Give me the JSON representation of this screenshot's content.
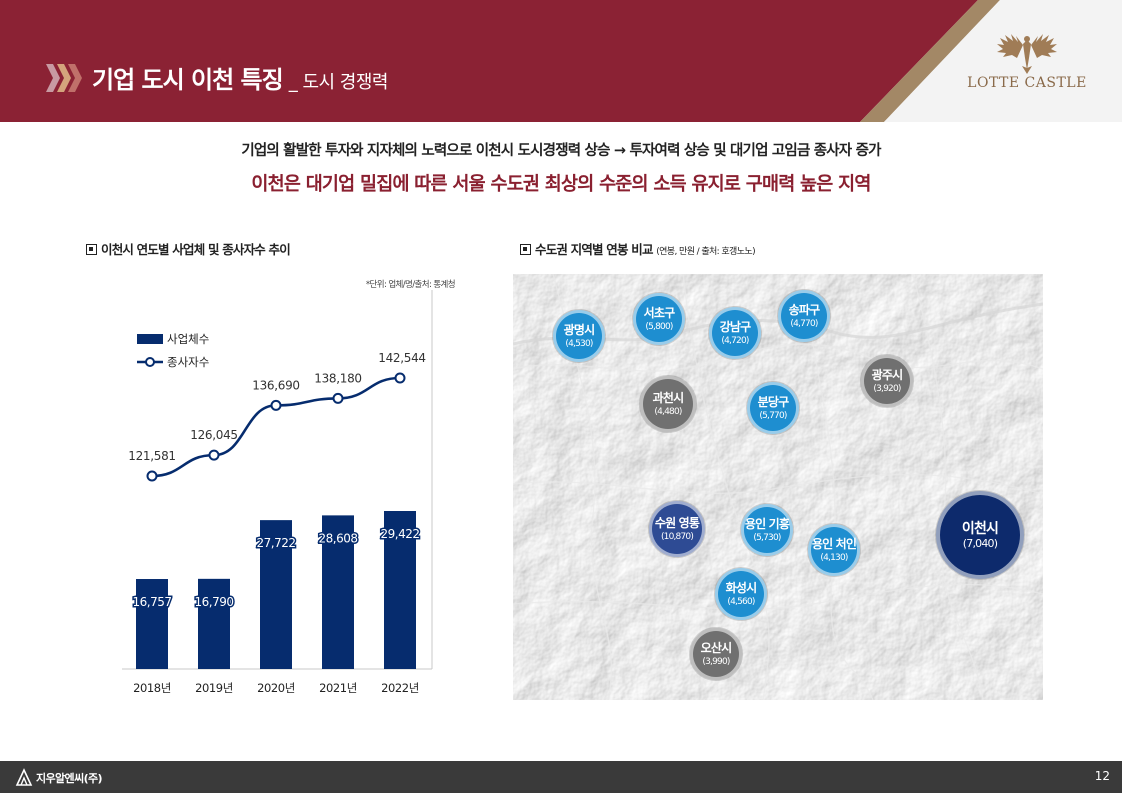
{
  "header": {
    "title": "기업 도시 이천 특징",
    "subtitle": "_ 도시 경쟁력",
    "brand": "LOTTE CASTLE"
  },
  "headline": {
    "line1": "기업의 활발한 투자와 지자체의 노력으로 이천시 도시경쟁력 상승 → 투자여력 상승 및 대기업 고임금 종사자 증가",
    "line2": "이천은 대기업 밀집에 따른 서울 수도권 최상의 수준의 소득 유지로 구매력 높은 지역"
  },
  "left_section": {
    "title": "이천시 연도별 사업체 및 종사자수 추이",
    "note": "*단위: 업체/명/출처: 통계청"
  },
  "right_section": {
    "title": "수도권 지역별 연봉 비교",
    "title_note": "(연봉, 만원 / 출처: 호갱노노)"
  },
  "chart_data": {
    "type": "bar",
    "categories": [
      "2018년",
      "2019년",
      "2020년",
      "2021년",
      "2022년"
    ],
    "series": [
      {
        "name": "사업체수",
        "type": "bar",
        "values": [
          16757,
          16790,
          27722,
          28608,
          29422
        ],
        "labels": [
          "16,757",
          "16,790",
          "27,722",
          "28,608",
          "29,422"
        ],
        "color": "#062c6e"
      },
      {
        "name": "종사자수",
        "type": "line",
        "values": [
          121581,
          126045,
          136690,
          138180,
          142544
        ],
        "labels": [
          "121,581",
          "126,045",
          "136,690",
          "138,180",
          "142,544"
        ],
        "color": "#062c6e"
      }
    ],
    "legend_position": "top-left",
    "grid": false
  },
  "map_regions": [
    {
      "name": "광명시",
      "value": "(4,530)",
      "color": "#1e8ed0"
    },
    {
      "name": "서초구",
      "value": "(5,800)",
      "color": "#1e8ed0"
    },
    {
      "name": "강남구",
      "value": "(4,720)",
      "color": "#1e8ed0"
    },
    {
      "name": "송파구",
      "value": "(4,770)",
      "color": "#1e8ed0"
    },
    {
      "name": "광주시",
      "value": "(3,920)",
      "color": "#707070"
    },
    {
      "name": "과천시",
      "value": "(4,480)",
      "color": "#707070"
    },
    {
      "name": "분당구",
      "value": "(5,770)",
      "color": "#1e8ed0"
    },
    {
      "name": "수원 영통",
      "value": "(10,870)",
      "color": "#2e4b94"
    },
    {
      "name": "용인 기흥",
      "value": "(5,730)",
      "color": "#1e8ed0"
    },
    {
      "name": "용인 처인",
      "value": "(4,130)",
      "color": "#1e8ed0"
    },
    {
      "name": "이천시",
      "value": "(7,040)",
      "color": "#0d2a6c"
    },
    {
      "name": "화성시",
      "value": "(4,560)",
      "color": "#1e8ed0"
    },
    {
      "name": "오산시",
      "value": "(3,990)",
      "color": "#707070"
    }
  ],
  "footer": {
    "company": "지우알엔씨(주)",
    "page": "12"
  }
}
